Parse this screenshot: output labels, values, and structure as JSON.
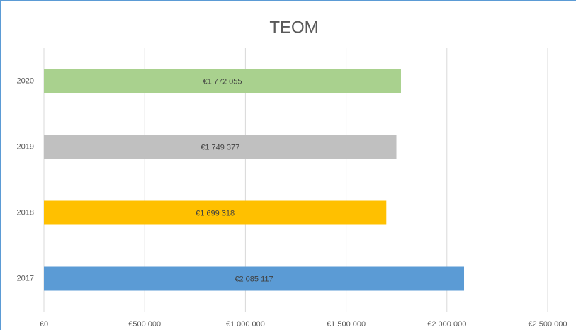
{
  "chart_data": {
    "type": "bar",
    "orientation": "horizontal",
    "title": "TEOM",
    "categories": [
      "2020",
      "2019",
      "2018",
      "2017"
    ],
    "values": [
      1772055,
      1749377,
      1699318,
      2085117
    ],
    "value_labels": [
      "€1 772 055",
      "€1 749 377",
      "€1 699 318",
      "€2 085 117"
    ],
    "colors": [
      "#a9d18e",
      "#c0c0c0",
      "#ffc000",
      "#5b9bd5"
    ],
    "xlim": [
      0,
      2500000
    ],
    "xticks": [
      {
        "value": 0,
        "label": "€0"
      },
      {
        "value": 500000,
        "label": "€500 000"
      },
      {
        "value": 1000000,
        "label": "€1 000 000"
      },
      {
        "value": 1500000,
        "label": "€1 500 000"
      },
      {
        "value": 2000000,
        "label": "€2 000 000"
      },
      {
        "value": 2500000,
        "label": "€2 500 000"
      }
    ],
    "grid": true
  }
}
